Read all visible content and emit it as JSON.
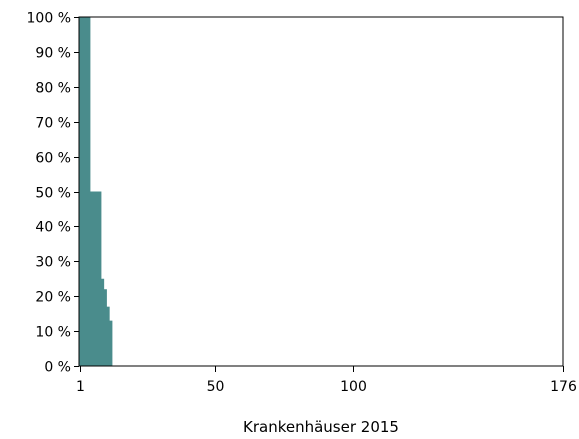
{
  "chart_data": {
    "type": "bar",
    "title": "",
    "xlabel": "Krankenhäuser 2015",
    "ylabel": "",
    "x_ticks": [
      "1",
      "50",
      "100",
      "176"
    ],
    "x_tick_values": [
      1,
      50,
      100,
      176
    ],
    "y_ticks": [
      "0 %",
      "10 %",
      "20 %",
      "30 %",
      "40 %",
      "50 %",
      "60 %",
      "70 %",
      "80 %",
      "90 %",
      "100 %"
    ],
    "y_tick_values": [
      0,
      10,
      20,
      30,
      40,
      50,
      60,
      70,
      80,
      90,
      100
    ],
    "xlim": [
      0,
      176
    ],
    "ylim": [
      0,
      100
    ],
    "grid": false,
    "legend": "none",
    "bar_color": "#4a8c8c",
    "x": [
      1,
      2,
      3,
      4,
      5,
      6,
      7,
      8,
      9,
      10,
      11,
      12
    ],
    "values": [
      100,
      100,
      100,
      100,
      50,
      50,
      50,
      50,
      25,
      22,
      17,
      13
    ]
  }
}
